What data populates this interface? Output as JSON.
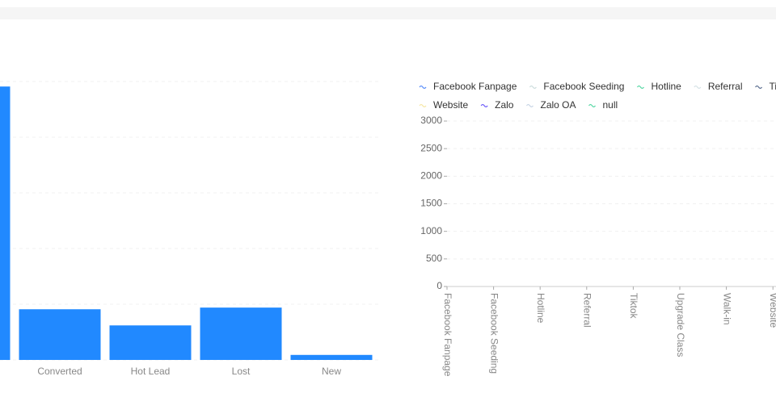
{
  "chart_data": [
    {
      "type": "bar",
      "categories": [
        null,
        "Converted",
        "Hot Lead",
        "Lost",
        "New"
      ],
      "values": [
        4.91,
        0.91,
        0.62,
        0.94,
        0.09
      ],
      "color": "#2189ff",
      "ylim": [
        0,
        5
      ],
      "yticks": [
        0,
        1,
        2,
        3,
        4,
        5
      ],
      "tick_labels": false,
      "grid": true
    },
    {
      "type": "line",
      "categories": [
        "Facebook Fanpage",
        "Facebook Seeding",
        "Hotline",
        "Referral",
        "Tiktok",
        "Upgrade Class",
        "Walk-in",
        "Website"
      ],
      "series": [
        {
          "name": "Facebook Fanpage",
          "color": "#5b8ff9"
        },
        {
          "name": "Facebook Seeding",
          "color": "#cddddd"
        },
        {
          "name": "Hotline",
          "color": "#5ad8a6"
        },
        {
          "name": "Referral",
          "color": "#d6e2e6"
        },
        {
          "name": "Tiktok",
          "color": "#5d7092"
        },
        {
          "name": "Website",
          "color": "#f6e7a6"
        },
        {
          "name": "Zalo",
          "color": "#6f5ef9"
        },
        {
          "name": "Zalo OA",
          "color": "#c9d6e6"
        },
        {
          "name": "null",
          "color": "#5ad8a6"
        }
      ],
      "ylim": [
        0,
        3000
      ],
      "yticks": [
        0,
        500,
        1000,
        1500,
        2000,
        2500,
        3000
      ],
      "tick_labels": true,
      "grid": true,
      "legend": "top"
    }
  ]
}
